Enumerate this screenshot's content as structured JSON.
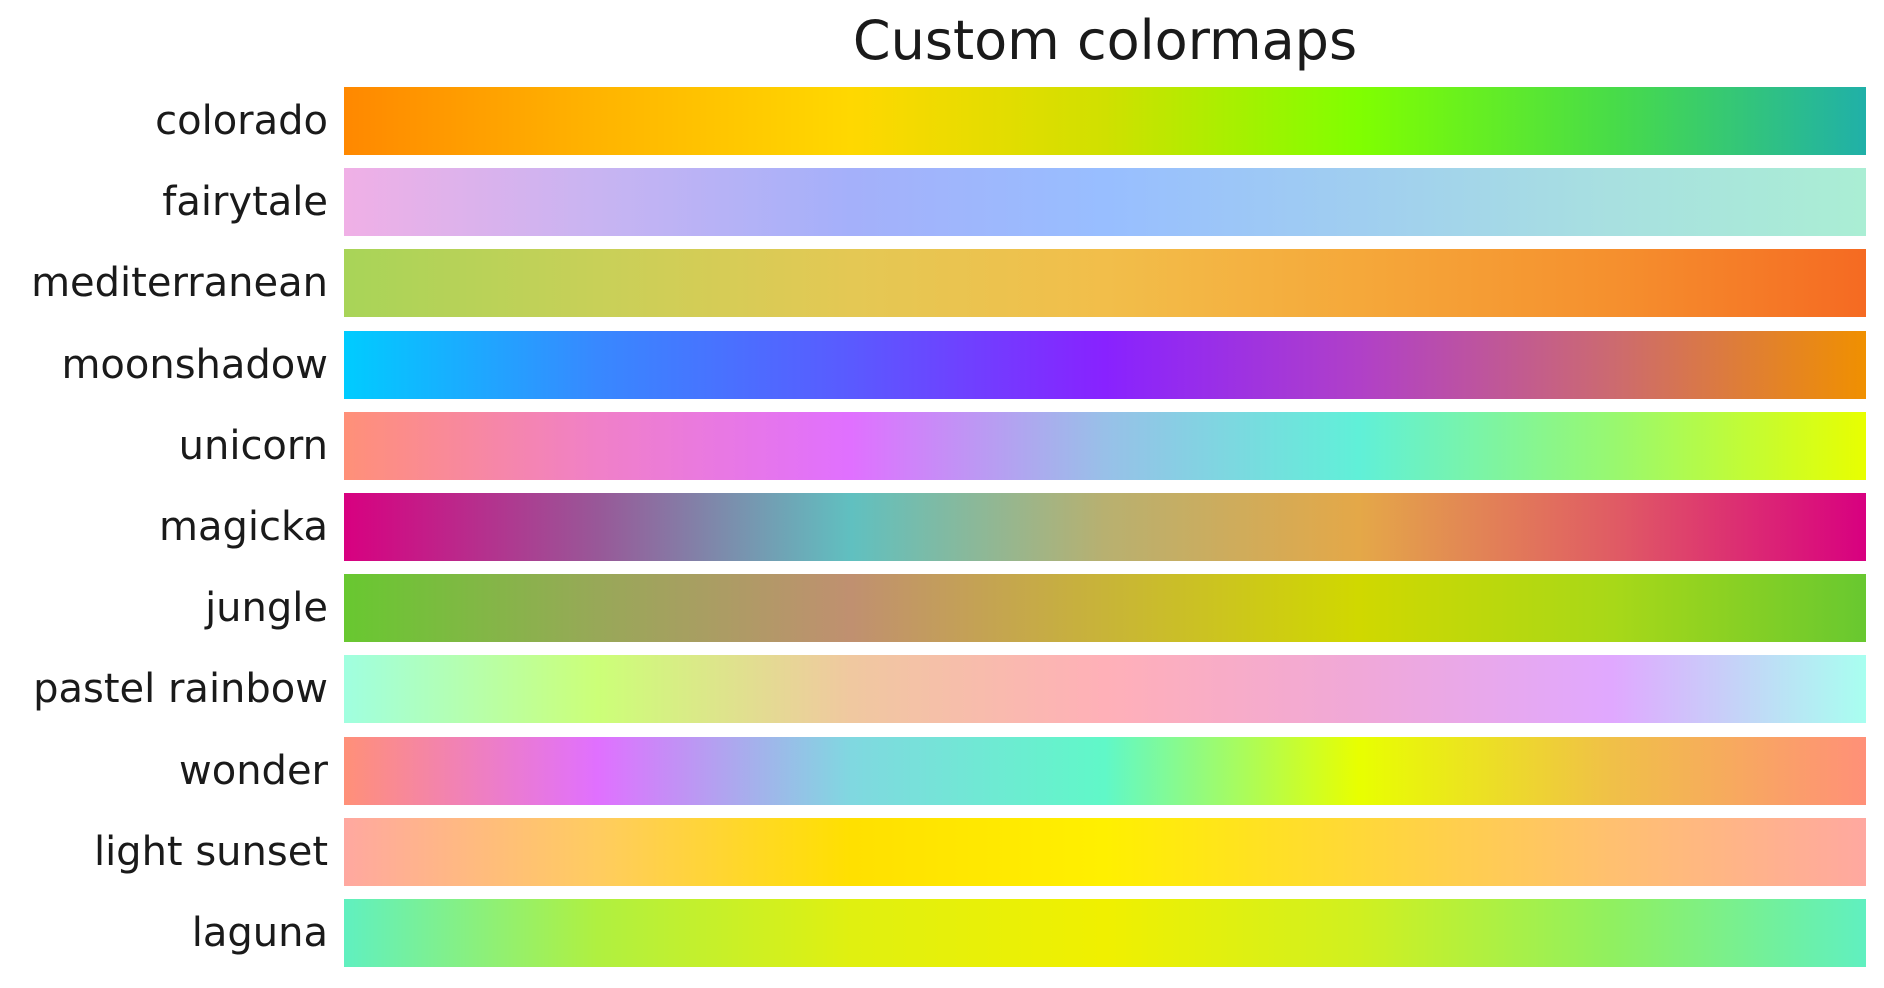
{
  "chart_data": {
    "type": "heatmap",
    "title": "Custom colormaps",
    "xlabel": "",
    "ylabel": "",
    "grid": false,
    "colormaps": [
      {
        "name": "colorado",
        "colors": [
          "#ff8800",
          "#ffb400",
          "#ffd800",
          "#d0e000",
          "#80ff00",
          "#48dc48",
          "#20b0a8"
        ]
      },
      {
        "name": "fairytale",
        "colors": [
          "#f0b0e6",
          "#c8b4f2",
          "#a4b0fa",
          "#98beff",
          "#a0cef0",
          "#a8e0e0",
          "#aaeed4"
        ]
      },
      {
        "name": "mediterranean",
        "colors": [
          "#a8d458",
          "#c8d058",
          "#e4c854",
          "#f2be4a",
          "#f5a83a",
          "#f5902e",
          "#f56a22"
        ]
      },
      {
        "name": "moonshadow",
        "colors": [
          "#00ccff",
          "#3888ff",
          "#5a5aff",
          "#8822ff",
          "#b040c8",
          "#cc6a70",
          "#f09000"
        ]
      },
      {
        "name": "unicorn",
        "colors": [
          "#ff9078",
          "#f080c8",
          "#e070ff",
          "#98c0e8",
          "#60f0d8",
          "#98f870",
          "#e8ff00"
        ]
      },
      {
        "name": "magicka",
        "colors": [
          "#d80080",
          "#985898",
          "#60c0c0",
          "#b8b070",
          "#e4a848",
          "#e05c64",
          "#d80080"
        ]
      },
      {
        "name": "jungle",
        "colors": [
          "#68c830",
          "#98a858",
          "#c09070",
          "#c8b438",
          "#d0d800",
          "#a8d818",
          "#68c830"
        ]
      },
      {
        "name": "pastel rainbow",
        "colors": [
          "#a0ffe0",
          "#ccff78",
          "#f0c8a0",
          "#ffb0b8",
          "#f0a8d8",
          "#e0a8ff",
          "#a8fff0"
        ]
      },
      {
        "name": "wonder",
        "colors": [
          "#ff9078",
          "#e070ff",
          "#80d8e0",
          "#60f8c8",
          "#e8ff00",
          "#f0c048",
          "#ff9078"
        ]
      },
      {
        "name": "light sunset",
        "colors": [
          "#ffa8a0",
          "#ffcc60",
          "#ffe000",
          "#fff000",
          "#ffd838",
          "#ffc070",
          "#ffa8a0"
        ]
      },
      {
        "name": "laguna",
        "colors": [
          "#60f0c0",
          "#b0f040",
          "#e0f010",
          "#f0f000",
          "#d0f020",
          "#90f060",
          "#60f0c0"
        ]
      }
    ]
  }
}
